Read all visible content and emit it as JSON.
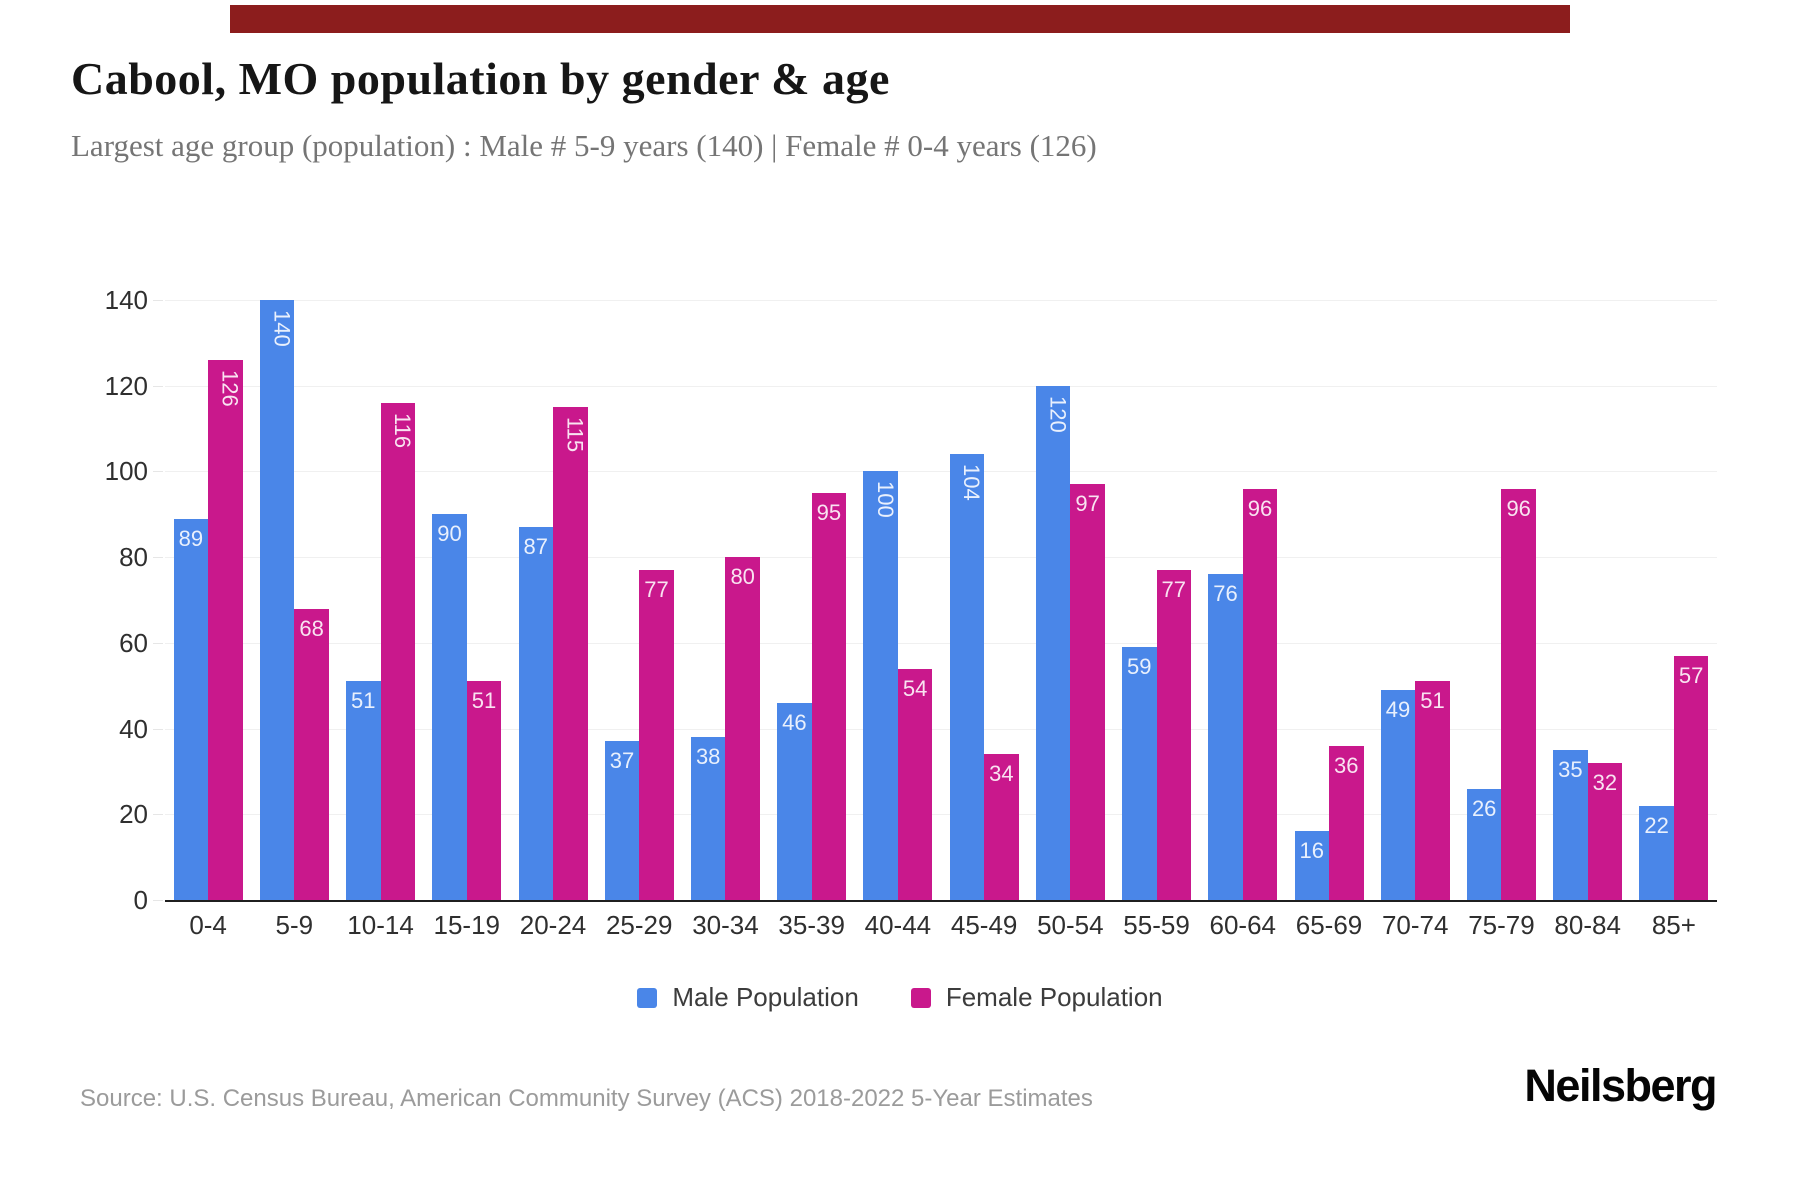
{
  "page": {
    "title": "Cabool, MO population by gender & age",
    "subtitle": "Largest age group (population) : Male # 5-9 years (140) | Female # 0-4 years (126)",
    "source": "Source: U.S. Census Bureau, American Community Survey (ACS) 2018-2022 5-Year Estimates",
    "brand": "Neilsberg",
    "top_banner_color": "#8c1d1d"
  },
  "legend": {
    "male_label": "Male Population",
    "female_label": "Female Population"
  },
  "colors": {
    "male": "#4a86e8",
    "female": "#c9188c",
    "grid": "#f0f0f0",
    "axis_text": "#2f2f2f",
    "baseline": "#1f1f1f",
    "value_label": "rgba(255,255,255,0.88)"
  },
  "chart_data": {
    "type": "bar",
    "title": "Cabool, MO population by gender & age",
    "xlabel": "",
    "ylabel": "",
    "categories": [
      "0-4",
      "5-9",
      "10-14",
      "15-19",
      "20-24",
      "25-29",
      "30-34",
      "35-39",
      "40-44",
      "45-49",
      "50-54",
      "55-59",
      "60-64",
      "65-69",
      "70-74",
      "75-79",
      "80-84",
      "85+"
    ],
    "series": [
      {
        "name": "Male Population",
        "color": "#4a86e8",
        "values": [
          89,
          140,
          51,
          90,
          87,
          37,
          38,
          46,
          100,
          104,
          120,
          59,
          76,
          16,
          49,
          26,
          35,
          22
        ]
      },
      {
        "name": "Female Population",
        "color": "#c9188c",
        "values": [
          126,
          68,
          116,
          51,
          115,
          77,
          80,
          95,
          54,
          34,
          97,
          77,
          96,
          36,
          51,
          96,
          32,
          57
        ]
      }
    ],
    "y_ticks": [
      0,
      20,
      40,
      60,
      80,
      100,
      120,
      140
    ],
    "ylim": [
      0,
      140
    ],
    "grid": true,
    "legend_position": "bottom",
    "value_labels": "inside bar top, white, rotated vertical when 3 digits"
  }
}
